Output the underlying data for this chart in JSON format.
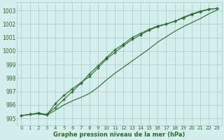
{
  "x": [
    0,
    1,
    2,
    3,
    4,
    5,
    6,
    7,
    8,
    9,
    10,
    11,
    12,
    13,
    14,
    15,
    16,
    17,
    18,
    19,
    20,
    21,
    22,
    23
  ],
  "line1": [
    995.2,
    995.3,
    995.4,
    995.3,
    995.8,
    996.4,
    997.0,
    997.6,
    998.3,
    998.9,
    999.5,
    1000.1,
    1000.5,
    1001.0,
    1001.3,
    1001.6,
    1001.85,
    1002.0,
    1002.2,
    1002.5,
    1002.75,
    1002.95,
    1003.1,
    1003.15
  ],
  "line2": [
    995.2,
    995.3,
    995.35,
    995.25,
    996.1,
    996.7,
    997.2,
    997.65,
    998.1,
    998.75,
    999.4,
    999.9,
    1000.4,
    1000.85,
    1001.2,
    1001.55,
    1001.8,
    1002.0,
    1002.2,
    1002.45,
    1002.7,
    1002.9,
    1003.1,
    1003.15
  ],
  "line3": [
    995.2,
    995.3,
    995.35,
    995.25,
    995.6,
    996.0,
    996.3,
    996.55,
    996.85,
    997.3,
    997.85,
    998.35,
    998.8,
    999.25,
    999.7,
    1000.15,
    1000.65,
    1001.05,
    1001.45,
    1001.8,
    1002.1,
    1002.4,
    1002.75,
    1003.05
  ],
  "line_color": "#2d6a2d",
  "bg_color": "#d4eeee",
  "grid_color": "#a8c8c8",
  "xlabel": "Graphe pression niveau de la mer (hPa)",
  "ylim": [
    994.5,
    1003.6
  ],
  "xlim": [
    -0.5,
    23.5
  ],
  "yticks": [
    995,
    996,
    997,
    998,
    999,
    1000,
    1001,
    1002,
    1003
  ],
  "xticks": [
    0,
    1,
    2,
    3,
    4,
    5,
    6,
    7,
    8,
    9,
    10,
    11,
    12,
    13,
    14,
    15,
    16,
    17,
    18,
    19,
    20,
    21,
    22,
    23
  ]
}
